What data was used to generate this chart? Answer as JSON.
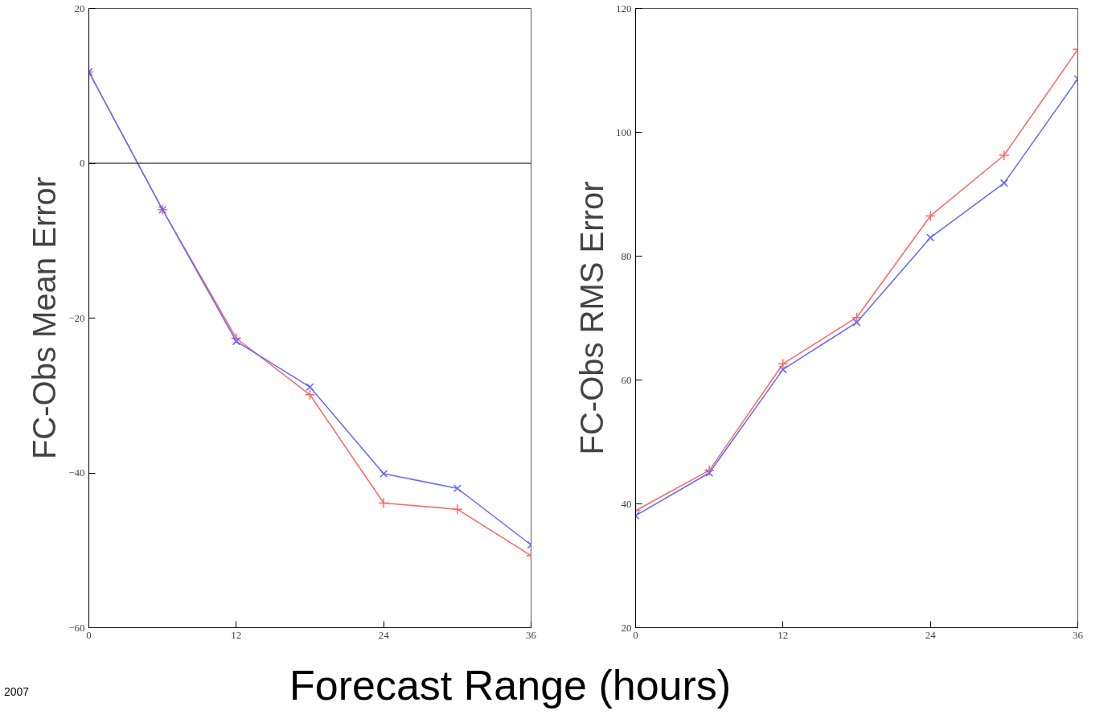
{
  "chart_data": [
    {
      "type": "line",
      "ylabel": "FC-Obs Mean Error",
      "xlabel": "Forecast Range (hours)",
      "annotations": [
        "2007"
      ],
      "x": [
        0,
        6,
        12,
        18,
        24,
        30,
        36
      ],
      "xlim": [
        0,
        36
      ],
      "xticks": [
        0,
        12,
        24,
        36
      ],
      "ylim": [
        -60,
        20
      ],
      "yticks": [
        -60,
        -40,
        -20,
        0,
        20
      ],
      "grid": false,
      "ref_lines": [
        {
          "axis": "y",
          "value": 0,
          "color": "#000000"
        }
      ],
      "series": [
        {
          "color": "#ff6666",
          "marker": "cross",
          "values": [
            11.8,
            -6.0,
            -22.6,
            -29.9,
            -43.9,
            -44.7,
            -50.7
          ]
        },
        {
          "color": "#6666ff",
          "marker": "x",
          "values": [
            11.8,
            -6.0,
            -23.0,
            -28.9,
            -40.1,
            -42.0,
            -49.3
          ]
        }
      ]
    },
    {
      "type": "line",
      "ylabel": "FC-Obs RMS Error",
      "x": [
        0,
        6,
        12,
        18,
        24,
        30,
        36
      ],
      "xlim": [
        0,
        36
      ],
      "xticks": [
        0,
        12,
        24,
        36
      ],
      "ylim": [
        20,
        120
      ],
      "yticks": [
        20,
        40,
        60,
        80,
        100,
        120
      ],
      "grid": false,
      "series": [
        {
          "color": "#ff6666",
          "marker": "cross",
          "values": [
            38.9,
            45.4,
            62.6,
            70.1,
            86.5,
            96.3,
            113.4
          ]
        },
        {
          "color": "#6666ff",
          "marker": "x",
          "values": [
            38.1,
            45.0,
            61.7,
            69.3,
            83.0,
            91.8,
            108.6
          ]
        }
      ]
    }
  ]
}
